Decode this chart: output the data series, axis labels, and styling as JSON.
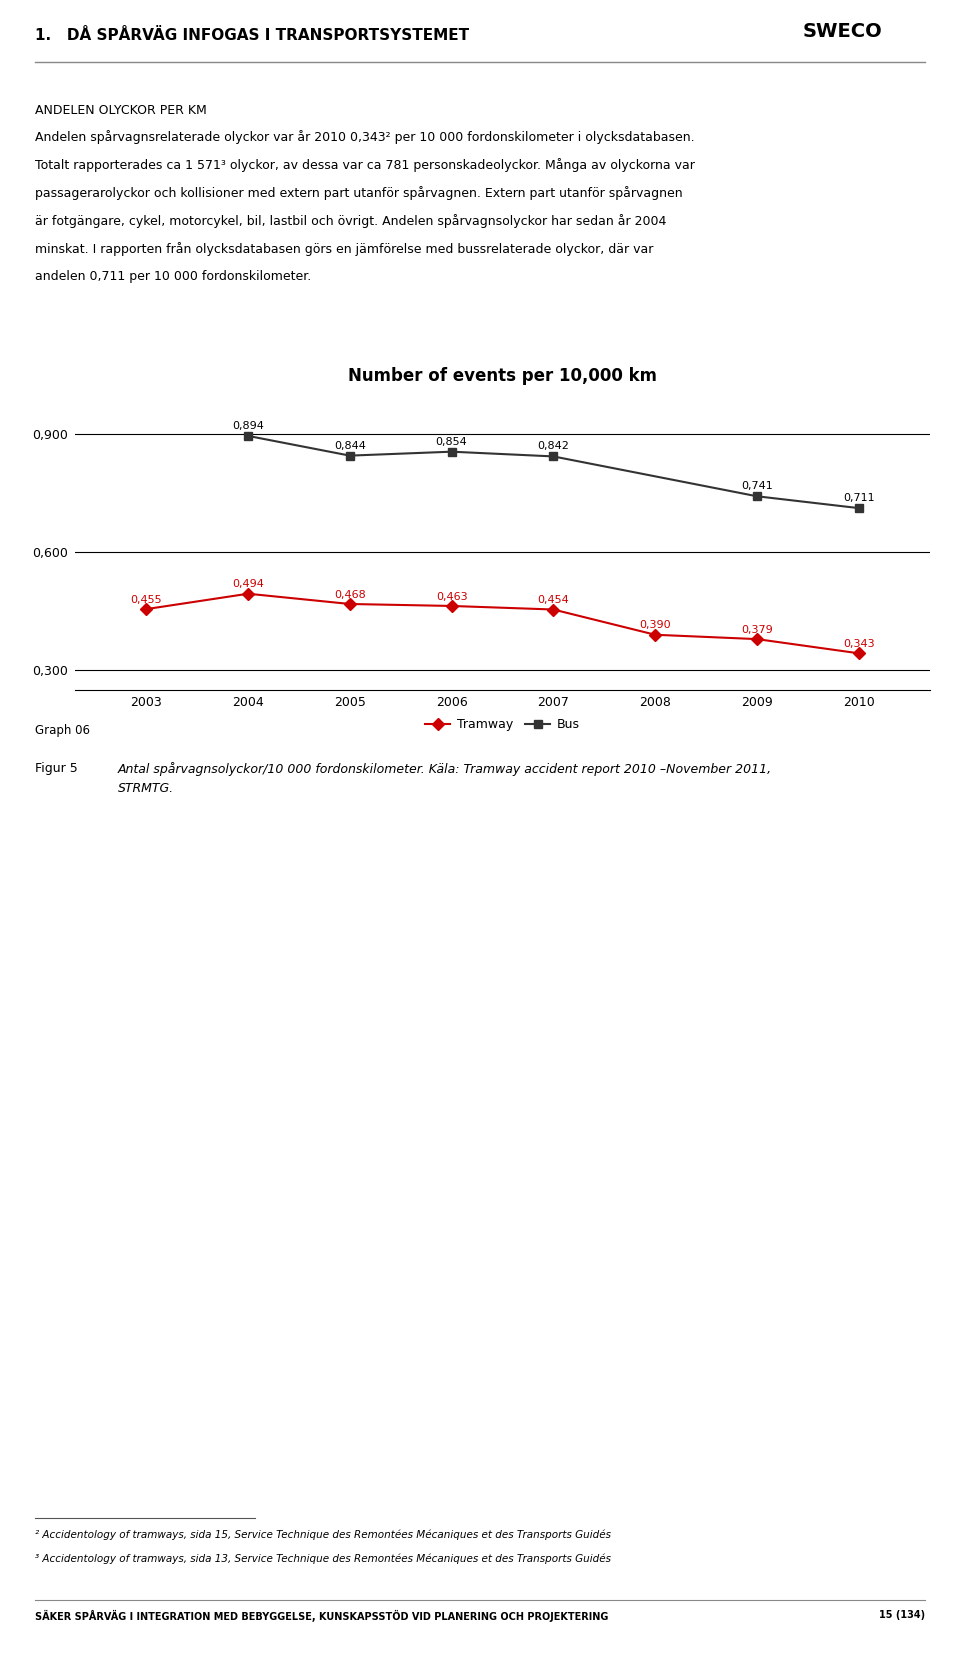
{
  "page_title": "1.   DÅ SPÅRVÄG INFOGAS I TRANSPORTSYSTEMET",
  "chart_title": "Number of events per 10,000 km",
  "years": [
    2003,
    2004,
    2005,
    2006,
    2007,
    2008,
    2009,
    2010
  ],
  "tramway_values": [
    0.455,
    0.494,
    0.468,
    0.463,
    0.454,
    0.39,
    0.379,
    0.343
  ],
  "bus_values": [
    null,
    0.894,
    0.844,
    0.854,
    0.842,
    null,
    0.741,
    0.711
  ],
  "tramway_color": "#cc0000",
  "bus_color": "#333333",
  "tramway_label": "Tramway",
  "bus_label": "Bus",
  "ylim": [
    0.25,
    0.985
  ],
  "yticks": [
    0.3,
    0.6,
    0.9
  ],
  "ytick_labels": [
    "0,300",
    "0,600",
    "0,900"
  ],
  "graph_label": "Graph 06",
  "sweco_text": "SWECO",
  "background_color": "#ffffff",
  "text_color": "#000000",
  "heading_text": "ANDELEN OLYCKOR PER KM",
  "body_lines": [
    "Andelen spårvagnsrelaterade olyckor var år 2010 0,343² per 10 000 fordonskilometer i olycksdatabasen.",
    "Totalt rapporterades ca 1 571³ olyckor, av dessa var ca 781 personskadeolyckor. Många av olyckorna var",
    "passagerarolyckor och kollisioner med extern part utanför spårvagnen. Extern part utanför spårvagnen",
    "är fotgängare, cykel, motorcykel, bil, lastbil och övrigt. Andelen spårvagnsolyckor har sedan år 2004",
    "minskat. I rapporten från olycksdatabasen görs en jämförelse med bussrelaterade olyckor, där var",
    "andelen 0,711 per 10 000 fordonskilometer."
  ],
  "figur_label": "Figur 5",
  "figur_text_1": "Antal spårvagnsolyckor/10 000 fordonskilometer. Käla: Tramway accident report 2010 –November 2011,",
  "figur_text_2": "STRMTG.",
  "footnote_1": "² Accidentology of tramways, sida 15, Service Technique des Remontées Mécaniques et des Transports Guidés",
  "footnote_2": "³ Accidentology of tramways, sida 13, Service Technique des Remontées Mécaniques et des Transports Guidés",
  "footer_text": "SÄKER SPÅRVÄG I INTEGRATION MED BEBYGGELSE, KUNSKAPSS TÖD VID PLANERING OCH PROJEKTERING",
  "footer_text_exact": "SÄKER SPÅRVÄG I INTEGRATION MED BEBYGGELSE, KUNSKAPSSTÖD VID PLANERING OCH PROJEKTERING",
  "footer_page": "15 (134)"
}
